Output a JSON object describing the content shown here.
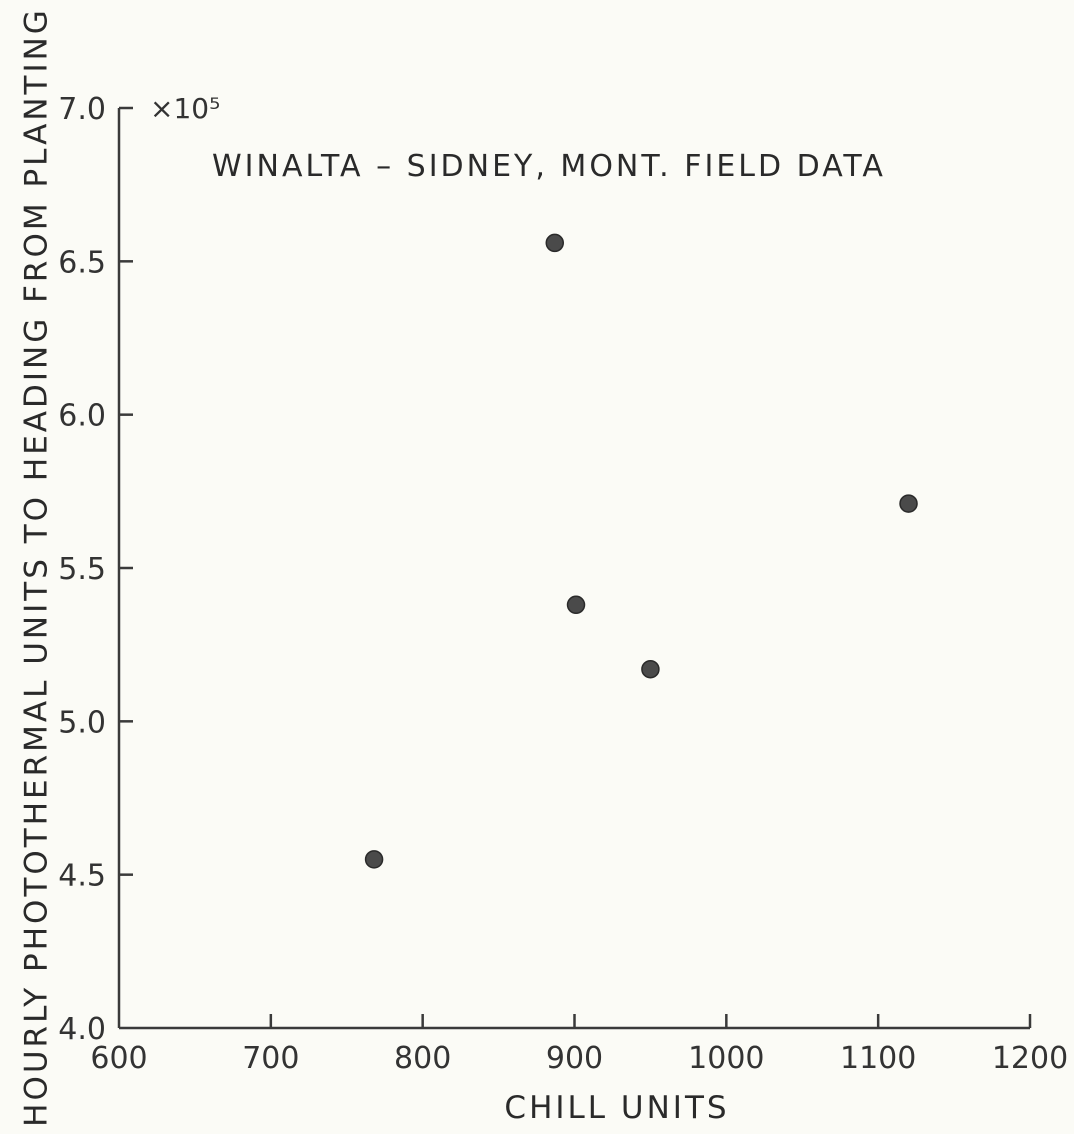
{
  "chart_data": {
    "type": "scatter",
    "title": "WINALTA – SIDNEY, MONT. FIELD DATA",
    "xlabel": "CHILL UNITS",
    "ylabel": "HOURLY PHOTOTHERMAL UNITS TO HEADING FROM PLANTING",
    "y_multiplier": "×10⁵",
    "xlim": [
      600,
      1200
    ],
    "ylim": [
      4.0,
      7.0
    ],
    "x_ticks": [
      "600",
      "700",
      "800",
      "900",
      "1000",
      "1100",
      "1200"
    ],
    "y_ticks": [
      "4.0",
      "4.5",
      "5.0",
      "5.5",
      "6.0",
      "6.5",
      "7.0"
    ],
    "grid": false,
    "marker_color": "#4a4a4a",
    "points": [
      {
        "x": 768,
        "y": 4.55
      },
      {
        "x": 887,
        "y": 6.56
      },
      {
        "x": 901,
        "y": 5.38
      },
      {
        "x": 950,
        "y": 5.17
      },
      {
        "x": 1120,
        "y": 5.71
      }
    ]
  }
}
